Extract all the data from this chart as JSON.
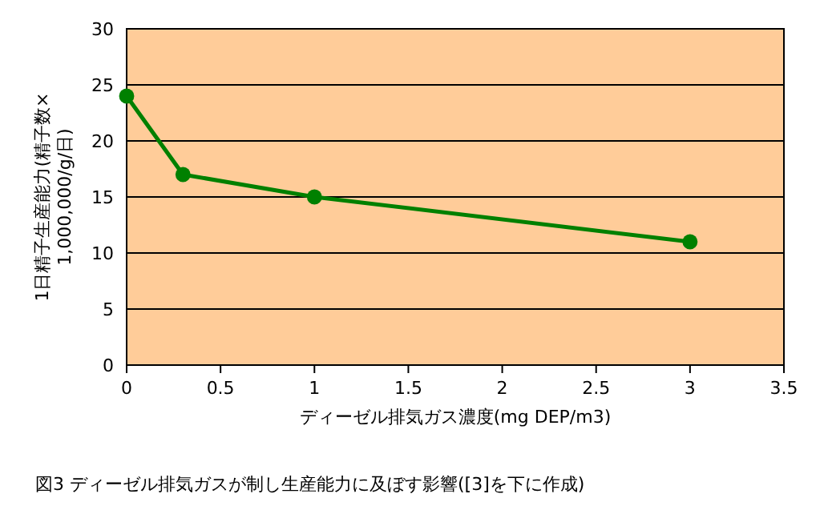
{
  "chart_data": {
    "type": "line",
    "xlabel": "ディーゼル排気ガス濃度(mg DEP/m3)",
    "ylabel": "1日精子生産能力(精子数×1,000,000/g/日)",
    "x": [
      0,
      0.3,
      1,
      3
    ],
    "series": [
      {
        "color": "#008000",
        "values": [
          24,
          17,
          15,
          11
        ]
      }
    ],
    "xlim": [
      0,
      3.5
    ],
    "xticks": [
      0,
      0.5,
      1,
      1.5,
      2,
      2.5,
      3,
      3.5
    ],
    "ylim": [
      0,
      30
    ],
    "yticks": [
      0,
      5,
      10,
      15,
      20,
      25,
      30
    ],
    "grid": "y",
    "marker": "circle",
    "line_style": "solid",
    "annotations": [
      "図3  ディーゼル排気ガスが制し生産能力に及ぼす影響([3]を下に作成)"
    ]
  }
}
